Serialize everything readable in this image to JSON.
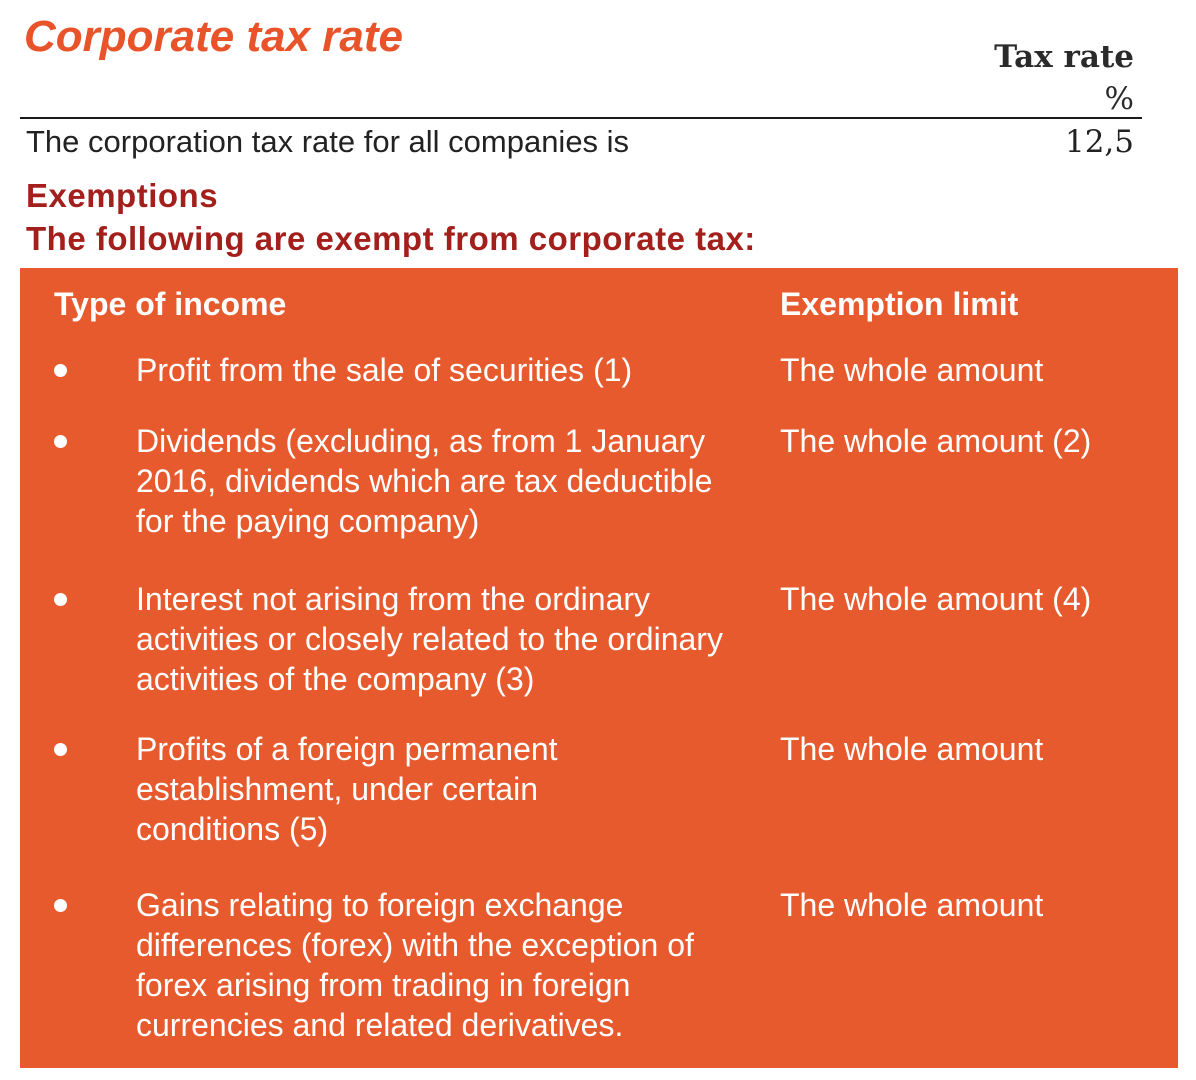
{
  "title": "Corporate tax rate",
  "tax_rate_header": {
    "label": "Tax rate",
    "unit": "%"
  },
  "rate_row": {
    "text": "The corporation tax rate for all companies  is",
    "value": "12,5"
  },
  "exemptions": {
    "heading": "Exemptions",
    "subheading": "The following are exempt from corporate tax:"
  },
  "table": {
    "col_income": "Type of income",
    "col_limit": "Exemption limit",
    "rows": [
      {
        "income": "Profit from the sale of securities (1)",
        "limit": "The whole amount"
      },
      {
        "income": "Dividends (excluding, as from 1 January 2016, dividends which are tax deductible for the paying company)",
        "limit": "The whole amount (2)"
      },
      {
        "income": "Interest not arising from the ordinary activities or closely related to the ordinary activities of the company (3)",
        "limit": "The whole amount (4)"
      },
      {
        "income": "Profits of a foreign permanent establishment, under certain conditions (5)",
        "limit": "The whole amount"
      },
      {
        "income": "Gains relating to foreign exchange differences (forex) with the exception of forex arising from trading in foreign currencies and related derivatives.",
        "limit": "The whole amount"
      }
    ]
  },
  "colors": {
    "title": "#e8532a",
    "heading": "#a31f1c",
    "panel": "#e65a2e"
  }
}
